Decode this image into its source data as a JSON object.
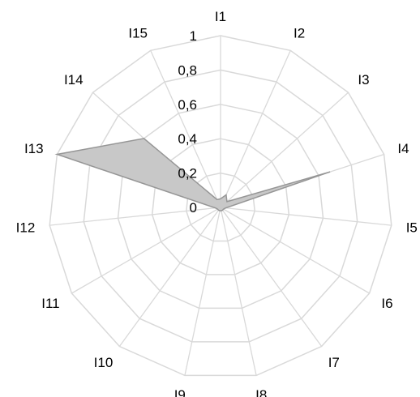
{
  "chart_data": {
    "type": "radar",
    "categories": [
      "I1",
      "I2",
      "I3",
      "I4",
      "I5",
      "I6",
      "I7",
      "I8",
      "I9",
      "I10",
      "I11",
      "I12",
      "I13",
      "I14",
      "I15"
    ],
    "rings": [
      "0",
      "0,2",
      "0,4",
      "0,6",
      "0,8",
      "1"
    ],
    "ring_values": [
      0,
      0.2,
      0.4,
      0.6,
      0.8,
      1
    ],
    "rlim": [
      0,
      1
    ],
    "series": [
      {
        "values": [
          0.05,
          0.08,
          0.05,
          0.67,
          0.03,
          0.02,
          0.02,
          0.02,
          0.02,
          0.02,
          0.02,
          0.03,
          1.0,
          0.6,
          0.05
        ],
        "fill": "#c8c8c8",
        "stroke": "#969696"
      }
    ],
    "grid_color": "#d9d9d9",
    "grid": true,
    "legend": "none"
  }
}
